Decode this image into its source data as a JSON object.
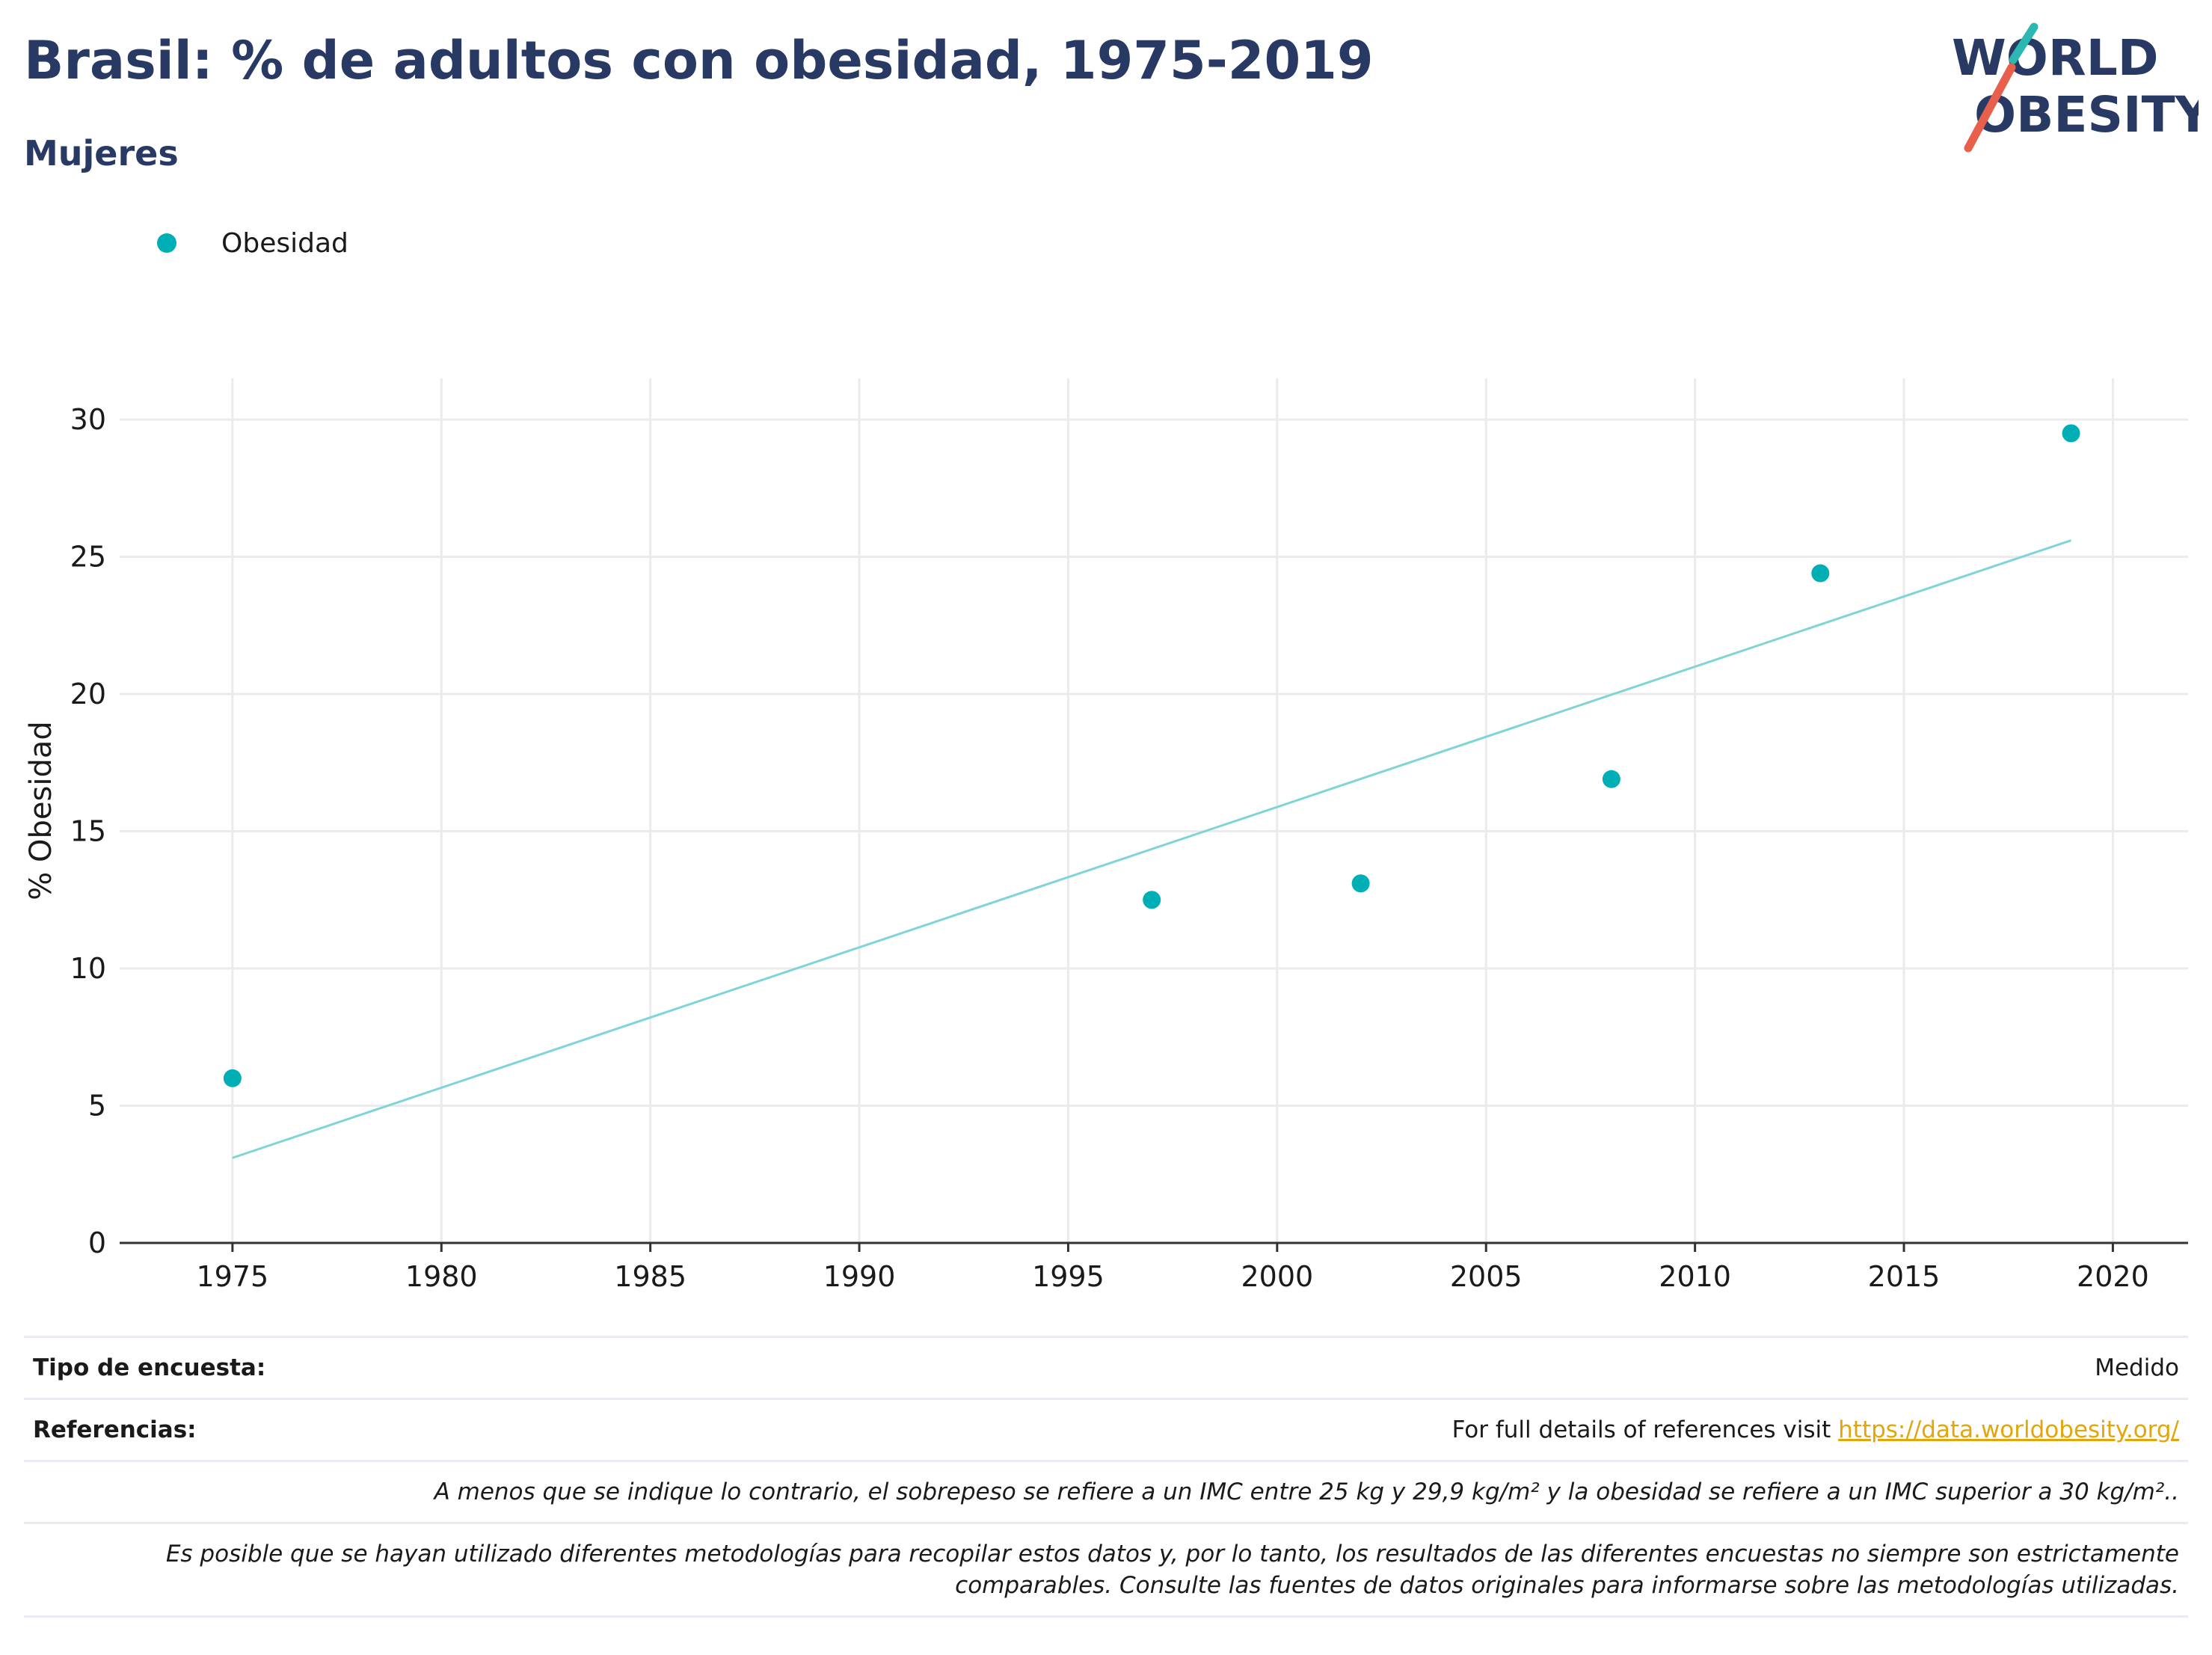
{
  "header": {
    "title": "Brasil: % de adultos con obesidad, 1975-2019",
    "subtitle": "Mujeres"
  },
  "logo": {
    "line1": "WORLD",
    "line2": "OBESITY",
    "colors": {
      "text": "#283a64",
      "teal": "#2bb8b1",
      "coral": "#e8604c"
    }
  },
  "legend": {
    "items": [
      {
        "label": "Obesidad",
        "color": "#00aeb5"
      }
    ]
  },
  "chart_data": {
    "type": "scatter",
    "xlabel": "",
    "ylabel": "% Obesidad",
    "xlim": [
      1972.3,
      2021.8
    ],
    "ylim": [
      0,
      31.5
    ],
    "xticks": [
      1975,
      1980,
      1985,
      1990,
      1995,
      2000,
      2005,
      2010,
      2015,
      2020
    ],
    "yticks": [
      0,
      5,
      10,
      15,
      20,
      25,
      30
    ],
    "grid": true,
    "legend_position": "top-left",
    "series": [
      {
        "name": "Obesidad",
        "color": "#00aeb5",
        "points": [
          {
            "x": 1975,
            "y": 6.0
          },
          {
            "x": 1997,
            "y": 12.5
          },
          {
            "x": 2002,
            "y": 13.1
          },
          {
            "x": 2008,
            "y": 16.9
          },
          {
            "x": 2013,
            "y": 24.4
          },
          {
            "x": 2019,
            "y": 29.5
          }
        ]
      }
    ],
    "trendline": {
      "color": "#7fd4d8",
      "from": {
        "x": 1975,
        "y": 3.1
      },
      "to": {
        "x": 2019,
        "y": 25.6
      }
    }
  },
  "footer": {
    "survey_label": "Tipo de encuesta:",
    "survey_value": "Medido",
    "refs_label": "Referencias:",
    "refs_text": "For full details of references visit ",
    "refs_link": "https://data.worldobesity.org/",
    "note1": "A menos que se indique lo contrario, el sobrepeso se refiere a un IMC entre 25 kg y 29,9 kg/m² y la obesidad se refiere a un IMC superior a 30 kg/m²..",
    "note2a": "Es posible que se hayan utilizado diferentes metodologías para recopilar estos datos y, por lo tanto, los resultados de las diferentes encuestas no siempre son estrictamente",
    "note2b": "comparables. Consulte las fuentes de datos originales para informarse sobre las metodologías utilizadas."
  }
}
